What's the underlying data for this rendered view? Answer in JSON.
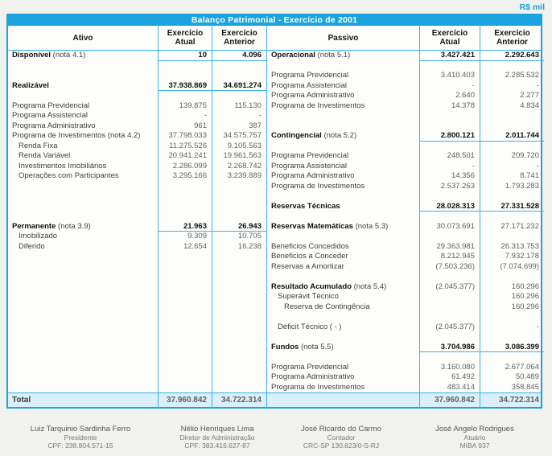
{
  "page": {
    "currency_note": "R$ mil"
  },
  "colors": {
    "accent": "#1aa3dc",
    "line": "#3ab1e3",
    "total_bg": "#d9eff9"
  },
  "table": {
    "title": "Balanço Patrimonial  -  Exercício de 2001",
    "headers": {
      "ativo": "Ativo",
      "passivo": "Passivo",
      "exercicio": "Exercício",
      "atual": "Atual",
      "anterior": "Anterior"
    },
    "total_label": "Total",
    "total": {
      "ativo_atual": "37.960.842",
      "ativo_anterior": "34.722.314",
      "passivo_atual": "37.960.842",
      "passivo_anterior": "34.722.314"
    },
    "ativo_rows": [
      {
        "label": "Disponível",
        "note": "(nota 4.1)",
        "atual": "10",
        "anterior": "4.096",
        "type": "sec"
      },
      {
        "type": "blank"
      },
      {
        "type": "blank"
      },
      {
        "label": "Realizável",
        "atual": "37.938.869",
        "anterior": "34.691.274",
        "type": "sec"
      },
      {
        "type": "blank"
      },
      {
        "label": "Programa Previdencial",
        "atual": "139.875",
        "anterior": "115.130",
        "type": "item"
      },
      {
        "label": "Programa Assistencial",
        "atual": "-",
        "anterior": "-",
        "type": "item"
      },
      {
        "label": "Programa Administrativo",
        "atual": "961",
        "anterior": "387",
        "type": "item"
      },
      {
        "label": "Programa de Investimentos",
        "note": "(nota 4.2)",
        "atual": "37.798.033",
        "anterior": "34.575.757",
        "type": "item"
      },
      {
        "label": "Renda Fixa",
        "atual": "11.275.526",
        "anterior": "9.105.563",
        "type": "item",
        "indent": 1
      },
      {
        "label": "Renda Variável",
        "atual": "20.941.241",
        "anterior": "19.961.563",
        "type": "item",
        "indent": 1
      },
      {
        "label": "Investimentos Imobiliários",
        "atual": "2.286.099",
        "anterior": "2.268.742",
        "type": "item",
        "indent": 1
      },
      {
        "label": "Operações com Participantes",
        "atual": "3.295.166",
        "anterior": "3.239.889",
        "type": "item",
        "indent": 1
      },
      {
        "type": "blank"
      },
      {
        "type": "blank"
      },
      {
        "type": "blank"
      },
      {
        "type": "blank"
      },
      {
        "label": "Permanente",
        "note": "(nota 3.9)",
        "atual": "21.963",
        "anterior": "26.943",
        "type": "sec"
      },
      {
        "label": "Imobilizado",
        "atual": "9.309",
        "anterior": "10.705",
        "type": "item",
        "indent": 1
      },
      {
        "label": "Diferido",
        "atual": "12.654",
        "anterior": "16.238",
        "type": "item",
        "indent": 1
      },
      {
        "type": "blank"
      },
      {
        "type": "blank"
      },
      {
        "type": "blank"
      },
      {
        "type": "blank"
      },
      {
        "type": "blank"
      },
      {
        "type": "blank"
      },
      {
        "type": "blank"
      },
      {
        "type": "blank"
      },
      {
        "type": "blank"
      },
      {
        "type": "blank"
      },
      {
        "type": "blank"
      },
      {
        "type": "blank"
      },
      {
        "type": "blank"
      },
      {
        "type": "blank"
      }
    ],
    "passivo_rows": [
      {
        "label": "Operacional",
        "note": "(nota  5.1)",
        "atual": "3.427.421",
        "anterior": "2.292.643",
        "type": "sec"
      },
      {
        "type": "blank"
      },
      {
        "label": "Programa Previdencial",
        "atual": "3.410.403",
        "anterior": "2.285.532",
        "type": "item"
      },
      {
        "label": "Programa Assistencial",
        "atual": "-",
        "anterior": "-",
        "type": "item"
      },
      {
        "label": "Programa Administrativo",
        "atual": "2.640",
        "anterior": "2.277",
        "type": "item"
      },
      {
        "label": "Programa de Investimentos",
        "atual": "14.378",
        "anterior": "4.834",
        "type": "item"
      },
      {
        "type": "blank"
      },
      {
        "type": "blank"
      },
      {
        "label": "Contingencial",
        "note": "(nota 5.2)",
        "atual": "2.800.121",
        "anterior": "2.011.744",
        "type": "sec"
      },
      {
        "type": "blank"
      },
      {
        "label": "Programa Previdencial",
        "atual": "248.501",
        "anterior": "209.720",
        "type": "item"
      },
      {
        "label": "Programa Assistencial",
        "atual": "-",
        "anterior": "-",
        "type": "item"
      },
      {
        "label": "Programa Administrativo",
        "atual": "14.356",
        "anterior": "8.741",
        "type": "item"
      },
      {
        "label": "Programa de Investimentos",
        "atual": "2.537.263",
        "anterior": "1.793.283",
        "type": "item"
      },
      {
        "type": "blank"
      },
      {
        "label": "Reservas Técnicas",
        "atual": "28.028.313",
        "anterior": "27.331.528",
        "type": "sec"
      },
      {
        "type": "blank"
      },
      {
        "label": "Reservas Matemáticas",
        "note": "(nota 5.3)",
        "atual": "30.073.691",
        "anterior": "27.171.232",
        "type": "seclabel"
      },
      {
        "type": "blank"
      },
      {
        "label": "Beneficios Concedidos",
        "atual": "29.363.981",
        "anterior": "26.313.753",
        "type": "item"
      },
      {
        "label": "Beneficios a Conceder",
        "atual": "8.212.945",
        "anterior": "7.932.178",
        "type": "item"
      },
      {
        "label": "Reservas a Amortizar",
        "atual": "(7.503.236)",
        "anterior": "(7.074.699)",
        "type": "item"
      },
      {
        "type": "blank"
      },
      {
        "label": "Resultado Acumulado",
        "note": "(nota 5.4)",
        "atual": "(2.045.377)",
        "anterior": "160.296",
        "type": "seclabel"
      },
      {
        "label": "Superávit Técnico",
        "atual": "",
        "anterior": "160.296",
        "type": "item",
        "indent": 1
      },
      {
        "label": "Reserva de Contingência",
        "atual": "",
        "anterior": "160.296",
        "type": "item",
        "indent": 2
      },
      {
        "type": "blank"
      },
      {
        "label": "Déficit Técnico ( - )",
        "atual": "(2.045.377)",
        "anterior": "-",
        "type": "item",
        "indent": 1
      },
      {
        "type": "blank"
      },
      {
        "label": "Fundos",
        "note": "(nota  5.5)",
        "atual": "3.704.986",
        "anterior": "3.086.399",
        "type": "sec"
      },
      {
        "type": "blank"
      },
      {
        "label": "Programa Previdencial",
        "atual": "3.160.080",
        "anterior": "2.677.064",
        "type": "item"
      },
      {
        "label": "Programa Administrativo",
        "atual": "61.492",
        "anterior": "50.489",
        "type": "item"
      },
      {
        "label": "Programa de Investimentos",
        "atual": "483.414",
        "anterior": "358.845",
        "type": "item"
      }
    ]
  },
  "signatures": [
    {
      "name": "Luiz Tarquinio Sardinha Ferro",
      "role": "Presidente",
      "registry": "CPF: 238.804.571-15"
    },
    {
      "name": "Nélio Henriques Lima",
      "role": "Diretor de Administração",
      "registry": "CPF: 383.416.627-87"
    },
    {
      "name": "José Ricardo do Carmo",
      "role": "Contador",
      "registry": "CRC-SP 130.823/0-S-RJ"
    },
    {
      "name": "José Angelo Rodrigues",
      "role": "Atuário",
      "registry": "MIBA 937"
    }
  ]
}
